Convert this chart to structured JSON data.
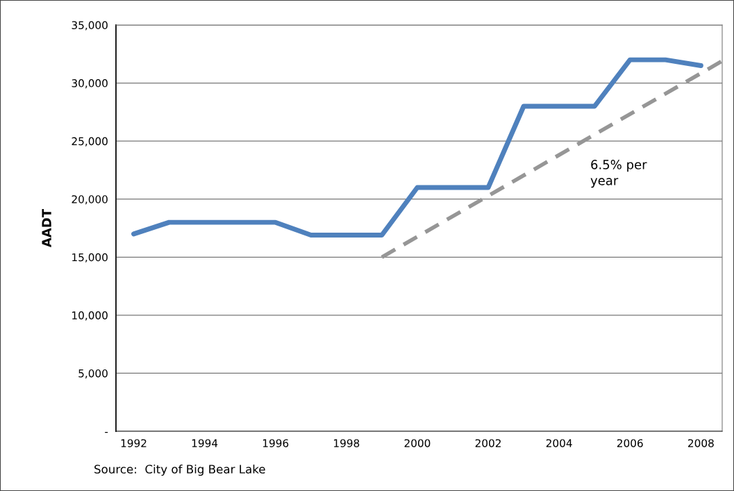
{
  "chart_data": {
    "type": "line",
    "ylabel": "AADT",
    "annotations": [
      "6.5% per\nyear",
      "Source:  City of Big Bear Lake"
    ],
    "series": [
      {
        "color": "#4f81bd",
        "x": [
          1992,
          1993,
          1994,
          1995,
          1996,
          1997,
          1998,
          1999,
          2000,
          2001,
          2002,
          2003,
          2004,
          2005,
          2006,
          2007,
          2008
        ],
        "values": [
          17000,
          18000,
          18000,
          18000,
          18000,
          16900,
          16900,
          16900,
          21000,
          21000,
          21000,
          28000,
          28000,
          28000,
          32000,
          32000,
          31500
        ]
      },
      {
        "color": "#969696",
        "line_style": "dashed",
        "x": [
          1999,
          2008.6
        ],
        "values": [
          15000,
          31900
        ]
      }
    ],
    "xlim": [
      1991.5,
      2008.6
    ],
    "xticks": [
      1992,
      1994,
      1996,
      1998,
      2000,
      2002,
      2004,
      2006,
      2008
    ],
    "ylim": [
      0,
      35000
    ],
    "yticks": [
      {
        "value": 0,
        "label": "-"
      },
      {
        "value": 5000,
        "label": "5,000"
      },
      {
        "value": 10000,
        "label": "10,000"
      },
      {
        "value": 15000,
        "label": "15,000"
      },
      {
        "value": 20000,
        "label": "20,000"
      },
      {
        "value": 25000,
        "label": "25,000"
      },
      {
        "value": 30000,
        "label": "30,000"
      },
      {
        "value": 35000,
        "label": "35,000"
      }
    ],
    "grid": "y",
    "marker": "none",
    "legend": false
  }
}
